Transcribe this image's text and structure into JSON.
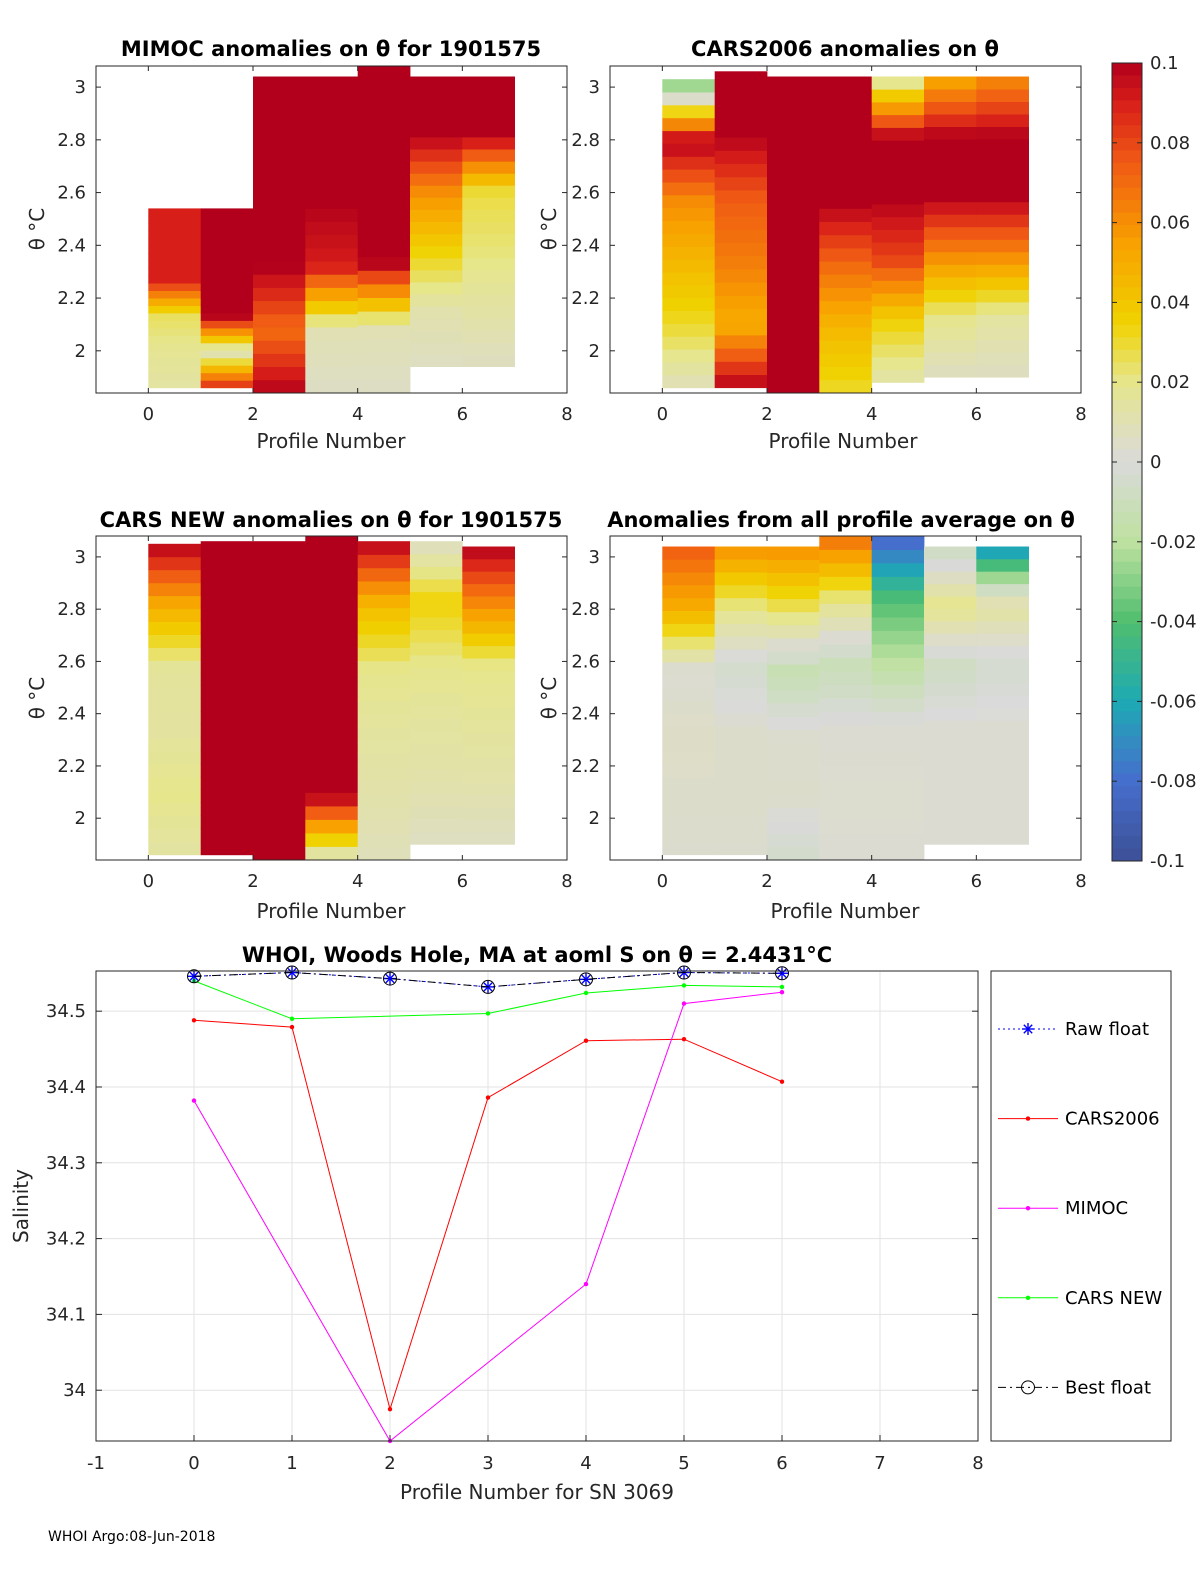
{
  "footer": "WHOI Argo:08-Jun-2018",
  "colorbar": {
    "ticks": [
      "0.1",
      "0.08",
      "0.06",
      "0.04",
      "0.02",
      "0",
      "-0.02",
      "-0.04",
      "-0.06",
      "-0.08",
      "-0.1"
    ],
    "range": [
      -0.1,
      0.1
    ]
  },
  "chart_data": [
    {
      "id": "mimoc",
      "type": "heatmap",
      "title": "MIMOC anomalies on θ  for 1901575",
      "xlabel": "Profile Number",
      "ylabel": "θ °C",
      "xlim": [
        -1,
        8
      ],
      "ylim": [
        1.84,
        3.08
      ],
      "xticks": [
        "0",
        "2",
        "4",
        "6",
        "8"
      ],
      "yticks": [
        "2",
        "2.2",
        "2.4",
        "2.6",
        "2.8",
        "3"
      ],
      "columns": [
        {
          "x0": 0,
          "x1": 1,
          "theta_min": 1.86,
          "theta_max": 2.54,
          "anomaly": [
            0.014,
            0.018,
            0.025,
            0.09,
            0.09,
            0.09
          ]
        },
        {
          "x0": 1,
          "x1": 2,
          "theta_min": 1.86,
          "theta_max": 2.54,
          "anomaly": [
            0.09,
            0.006,
            0.1,
            0.1,
            0.1,
            0.1
          ]
        },
        {
          "x0": 2,
          "x1": 3,
          "theta_min": 1.84,
          "theta_max": 3.04,
          "anomaly": [
            0.1,
            0.07,
            0.1,
            0.1,
            0.1,
            0.1
          ]
        },
        {
          "x0": 3,
          "x1": 4,
          "theta_min": 1.84,
          "theta_max": 3.04,
          "anomaly": [
            0.005,
            0.01,
            0.09,
            0.1,
            0.1,
            0.1
          ]
        },
        {
          "x0": 4,
          "x1": 5,
          "theta_min": 1.84,
          "theta_max": 3.08,
          "anomaly": [
            0.005,
            0.01,
            0.1,
            0.1,
            0.1,
            0.1
          ]
        },
        {
          "x0": 5,
          "x1": 6,
          "theta_min": 1.94,
          "theta_max": 3.04,
          "anomaly": [
            0.006,
            0.012,
            0.035,
            0.06,
            0.1,
            0.1
          ]
        },
        {
          "x0": 6,
          "x1": 7,
          "theta_min": 1.94,
          "theta_max": 3.04,
          "anomaly": [
            0.006,
            0.014,
            0.022,
            0.028,
            0.1,
            0.1
          ]
        }
      ]
    },
    {
      "id": "cars2006",
      "type": "heatmap",
      "title": "CARS2006 anomalies on θ",
      "xlabel": "Profile Number",
      "ylabel": "θ °C",
      "xlim": [
        -1,
        8
      ],
      "ylim": [
        1.84,
        3.08
      ],
      "xticks": [
        "0",
        "2",
        "4",
        "6",
        "8"
      ],
      "yticks": [
        "2",
        "2.2",
        "2.4",
        "2.6",
        "2.8",
        "3"
      ],
      "columns": [
        {
          "x0": 0,
          "x1": 1,
          "theta_min": 1.86,
          "theta_max": 3.03,
          "anomaly": [
            0.008,
            0.03,
            0.045,
            0.06,
            0.1,
            -0.04
          ]
        },
        {
          "x0": 1,
          "x1": 2,
          "theta_min": 1.86,
          "theta_max": 3.06,
          "anomaly": [
            0.1,
            0.05,
            0.065,
            0.075,
            0.1,
            0.1
          ]
        },
        {
          "x0": 2,
          "x1": 3,
          "theta_min": 1.84,
          "theta_max": 3.04,
          "anomaly": [
            0.1,
            0.1,
            0.1,
            0.1,
            0.1,
            0.1
          ]
        },
        {
          "x0": 3,
          "x1": 4,
          "theta_min": 1.84,
          "theta_max": 3.04,
          "anomaly": [
            0.03,
            0.045,
            0.07,
            0.1,
            0.1,
            0.1
          ]
        },
        {
          "x0": 4,
          "x1": 5,
          "theta_min": 1.88,
          "theta_max": 3.04,
          "anomaly": [
            0.012,
            0.035,
            0.08,
            0.1,
            0.1,
            0.01
          ]
        },
        {
          "x0": 5,
          "x1": 6,
          "theta_min": 1.9,
          "theta_max": 3.04,
          "anomaly": [
            0.006,
            0.02,
            0.06,
            0.1,
            0.1,
            0.05
          ]
        },
        {
          "x0": 6,
          "x1": 7,
          "theta_min": 1.9,
          "theta_max": 3.04,
          "anomaly": [
            0.006,
            0.015,
            0.06,
            0.1,
            0.1,
            0.06
          ]
        }
      ]
    },
    {
      "id": "cars_new",
      "type": "heatmap",
      "title": "CARS NEW anomalies on θ for 1901575",
      "xlabel": "Profile Number",
      "ylabel": "θ °C",
      "xlim": [
        -1,
        8
      ],
      "ylim": [
        1.84,
        3.08
      ],
      "xticks": [
        "0",
        "2",
        "4",
        "6",
        "8"
      ],
      "yticks": [
        "2",
        "2.2",
        "2.4",
        "2.6",
        "2.8",
        "3"
      ],
      "columns": [
        {
          "x0": 0,
          "x1": 1,
          "theta_min": 1.86,
          "theta_max": 3.05,
          "anomaly": [
            0.014,
            0.02,
            0.015,
            0.016,
            0.05,
            0.1
          ]
        },
        {
          "x0": 1,
          "x1": 2,
          "theta_min": 1.86,
          "theta_max": 3.06,
          "anomaly": [
            0.1,
            0.1,
            0.1,
            0.1,
            0.1,
            0.1
          ]
        },
        {
          "x0": 2,
          "x1": 3,
          "theta_min": 1.84,
          "theta_max": 3.06,
          "anomaly": [
            0.1,
            0.1,
            0.1,
            0.1,
            0.1,
            0.1
          ]
        },
        {
          "x0": 3,
          "x1": 4,
          "theta_min": 1.84,
          "theta_max": 3.08,
          "anomaly": [
            0.005,
            0.1,
            0.1,
            0.1,
            0.1,
            0.1
          ]
        },
        {
          "x0": 4,
          "x1": 5,
          "theta_min": 1.84,
          "theta_max": 3.06,
          "anomaly": [
            0.008,
            0.012,
            0.015,
            0.02,
            0.045,
            0.1
          ]
        },
        {
          "x0": 5,
          "x1": 6,
          "theta_min": 1.9,
          "theta_max": 3.06,
          "anomaly": [
            0.006,
            0.012,
            0.015,
            0.02,
            0.035,
            0.005
          ]
        },
        {
          "x0": 6,
          "x1": 7,
          "theta_min": 1.9,
          "theta_max": 3.04,
          "anomaly": [
            0.006,
            0.012,
            0.016,
            0.02,
            0.06,
            0.1
          ]
        }
      ]
    },
    {
      "id": "all_profile_avg",
      "type": "heatmap",
      "title": "Anomalies from all profile average on θ",
      "xlabel": "Profile Number",
      "ylabel": "θ °C",
      "xlim": [
        -1,
        8
      ],
      "ylim": [
        1.84,
        3.08
      ],
      "xticks": [
        "0",
        "2",
        "4",
        "6",
        "8"
      ],
      "yticks": [
        "2",
        "2.2",
        "2.4",
        "2.6",
        "2.8",
        "3"
      ],
      "columns": [
        {
          "x0": 0,
          "x1": 1,
          "theta_min": 1.86,
          "theta_max": 3.04,
          "anomaly": [
            0.003,
            0.004,
            0.005,
            0.002,
            0.05,
            0.075
          ]
        },
        {
          "x0": 1,
          "x1": 2,
          "theta_min": 1.86,
          "theta_max": 3.04,
          "anomaly": [
            0.003,
            0.004,
            0.004,
            -0.005,
            0.02,
            0.06
          ]
        },
        {
          "x0": 2,
          "x1": 3,
          "theta_min": 1.84,
          "theta_max": 3.04,
          "anomaly": [
            -0.006,
            0.004,
            0.003,
            -0.014,
            0.025,
            0.06
          ]
        },
        {
          "x0": 3,
          "x1": 4,
          "theta_min": 1.84,
          "theta_max": 3.08,
          "anomaly": [
            0.002,
            0.003,
            0.002,
            -0.012,
            0.02,
            0.07
          ]
        },
        {
          "x0": 4,
          "x1": 5,
          "theta_min": 1.84,
          "theta_max": 3.08,
          "anomaly": [
            0.002,
            0.003,
            0.002,
            -0.018,
            -0.04,
            -0.085
          ]
        },
        {
          "x0": 5,
          "x1": 6,
          "theta_min": 1.9,
          "theta_max": 3.04,
          "anomaly": [
            0.002,
            0.002,
            0.002,
            -0.008,
            0.02,
            -0.01
          ]
        },
        {
          "x0": 6,
          "x1": 7,
          "theta_min": 1.9,
          "theta_max": 3.04,
          "anomaly": [
            0.002,
            0.002,
            0.002,
            -0.004,
            0.015,
            -0.07
          ]
        }
      ]
    },
    {
      "id": "salinity",
      "type": "line",
      "title": "WHOI, Woods Hole, MA at aoml S on θ = 2.4431°C",
      "xlabel": "Profile Number for SN 3069",
      "ylabel": "Salinity",
      "xlim": [
        -1,
        8
      ],
      "ylim": [
        33.933,
        34.553
      ],
      "xticks": [
        "-1",
        "0",
        "1",
        "2",
        "3",
        "4",
        "5",
        "6",
        "7",
        "8"
      ],
      "yticks": [
        "34",
        "34.1",
        "34.2",
        "34.3",
        "34.4",
        "34.5"
      ],
      "grid": true,
      "legend_position": "outside-right",
      "series": [
        {
          "name": "Raw float",
          "color": "#0000ff",
          "marker": "star",
          "dash": "dotted",
          "x": [
            0,
            1,
            2,
            3,
            4,
            5,
            6
          ],
          "y": [
            34.546,
            34.551,
            34.543,
            34.532,
            34.542,
            34.551,
            34.55
          ]
        },
        {
          "name": "CARS2006",
          "color": "#ff0000",
          "marker": "dot",
          "dash": "solid",
          "x": [
            0,
            1,
            2,
            3,
            4,
            5,
            6
          ],
          "y": [
            34.488,
            34.479,
            33.975,
            34.386,
            34.461,
            34.463,
            34.407
          ]
        },
        {
          "name": "MIMOC",
          "color": "#ff00ff",
          "marker": "dot",
          "dash": "solid",
          "x": [
            0,
            2,
            4,
            5,
            6
          ],
          "y": [
            34.382,
            33.933,
            34.14,
            34.51,
            34.525
          ]
        },
        {
          "name": "CARS NEW",
          "color": "#00ff00",
          "marker": "dot",
          "dash": "solid",
          "x": [
            0,
            1,
            3,
            4,
            5,
            6
          ],
          "y": [
            34.54,
            34.49,
            34.497,
            34.524,
            34.534,
            34.532
          ]
        },
        {
          "name": "Best float",
          "color": "#000000",
          "marker": "circle",
          "dash": "dashdot",
          "x": [
            0,
            1,
            2,
            3,
            4,
            5,
            6
          ],
          "y": [
            34.546,
            34.551,
            34.543,
            34.532,
            34.542,
            34.551,
            34.55
          ]
        }
      ]
    }
  ]
}
